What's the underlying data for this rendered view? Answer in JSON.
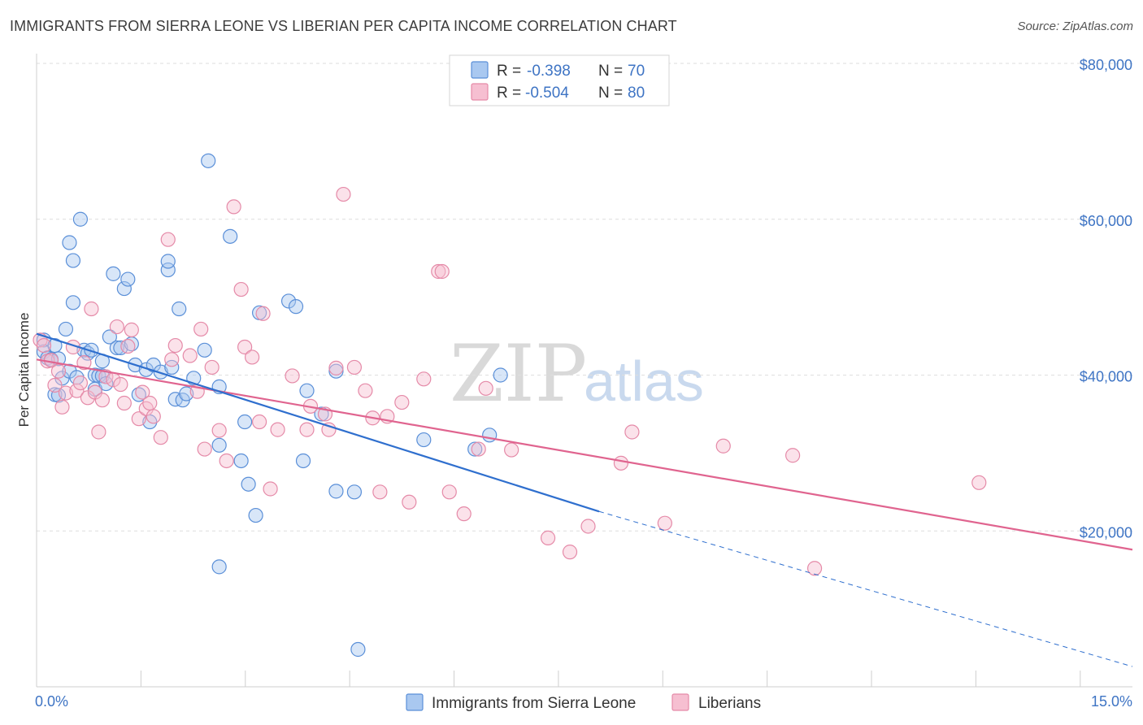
{
  "title": "IMMIGRANTS FROM SIERRA LEONE VS LIBERIAN PER CAPITA INCOME CORRELATION CHART",
  "source": "Source: ZipAtlas.com",
  "watermark": {
    "zip": "ZIP",
    "atlas": "atlas"
  },
  "colors": {
    "series1_fill": "#a9c8f0",
    "series1_stroke": "#5a8fd8",
    "series1_line": "#2f6fce",
    "series2_fill": "#f6bfd1",
    "series2_stroke": "#e58aa8",
    "series2_line": "#e0648f",
    "axis_text": "#3e74c4",
    "grid": "#dedede"
  },
  "stats": [
    {
      "r_label": "R = ",
      "r_value": "-0.398",
      "n_label": "N = ",
      "n_value": "70"
    },
    {
      "r_label": "R = ",
      "r_value": "-0.504",
      "n_label": "N = ",
      "n_value": "80"
    }
  ],
  "chart_data": {
    "type": "scatter",
    "title": "IMMIGRANTS FROM SIERRA LEONE VS LIBERIAN PER CAPITA INCOME CORRELATION CHART",
    "xlabel": "",
    "ylabel": "Per Capita Income",
    "xlim": [
      0,
      15
    ],
    "ylim": [
      0,
      80000
    ],
    "x_tick_labels": [
      "0.0%",
      "15.0%"
    ],
    "y_tick_labels": [
      "$20,000",
      "$40,000",
      "$60,000",
      "$80,000"
    ],
    "y_ticks": [
      20000,
      40000,
      60000,
      80000
    ],
    "grid": true,
    "legend_position": "bottom",
    "series": [
      {
        "name": "Immigrants from Sierra Leone",
        "trend": {
          "x0": 0,
          "y0": 45300,
          "x1": 7.7,
          "y1": 22500,
          "dashed_to_x": 15,
          "dashed_to_y": 2600
        },
        "points": [
          [
            0.1,
            44500
          ],
          [
            0.1,
            43000
          ],
          [
            0.15,
            42200
          ],
          [
            0.2,
            42000
          ],
          [
            0.25,
            43800
          ],
          [
            0.25,
            37500
          ],
          [
            0.3,
            37400
          ],
          [
            0.3,
            42100
          ],
          [
            0.35,
            39600
          ],
          [
            0.4,
            45900
          ],
          [
            0.45,
            40500
          ],
          [
            0.45,
            57000
          ],
          [
            0.5,
            49300
          ],
          [
            0.5,
            54700
          ],
          [
            0.55,
            39700
          ],
          [
            0.6,
            60000
          ],
          [
            0.65,
            43200
          ],
          [
            0.7,
            42800
          ],
          [
            0.75,
            43200
          ],
          [
            0.8,
            38200
          ],
          [
            0.8,
            40000
          ],
          [
            0.85,
            39900
          ],
          [
            0.9,
            39900
          ],
          [
            0.95,
            38900
          ],
          [
            0.9,
            41800
          ],
          [
            1.0,
            44900
          ],
          [
            1.05,
            53000
          ],
          [
            1.1,
            43500
          ],
          [
            1.15,
            43500
          ],
          [
            1.2,
            51100
          ],
          [
            1.25,
            52300
          ],
          [
            1.3,
            44000
          ],
          [
            1.35,
            41300
          ],
          [
            1.4,
            37500
          ],
          [
            1.5,
            40700
          ],
          [
            1.55,
            34000
          ],
          [
            1.6,
            41300
          ],
          [
            1.7,
            40400
          ],
          [
            1.8,
            53500
          ],
          [
            1.8,
            54600
          ],
          [
            1.85,
            41000
          ],
          [
            1.9,
            36900
          ],
          [
            1.95,
            48500
          ],
          [
            2.0,
            36800
          ],
          [
            2.05,
            37600
          ],
          [
            2.15,
            39600
          ],
          [
            2.3,
            43200
          ],
          [
            2.35,
            67500
          ],
          [
            2.5,
            15400
          ],
          [
            2.5,
            38500
          ],
          [
            2.5,
            31000
          ],
          [
            2.65,
            57800
          ],
          [
            2.8,
            29000
          ],
          [
            2.85,
            34000
          ],
          [
            2.9,
            26000
          ],
          [
            3.0,
            22000
          ],
          [
            3.05,
            48000
          ],
          [
            3.45,
            49500
          ],
          [
            3.55,
            48800
          ],
          [
            3.65,
            29000
          ],
          [
            3.7,
            38000
          ],
          [
            3.9,
            35000
          ],
          [
            4.1,
            25100
          ],
          [
            4.1,
            40500
          ],
          [
            4.35,
            25000
          ],
          [
            4.4,
            4800
          ],
          [
            5.3,
            31700
          ],
          [
            6.2,
            32300
          ],
          [
            6.35,
            40000
          ],
          [
            6.0,
            30500
          ]
        ]
      },
      {
        "name": "Liberians",
        "trend": {
          "x0": 0,
          "y0": 42000,
          "x1": 15,
          "y1": 17600
        },
        "points": [
          [
            0.05,
            44500
          ],
          [
            0.1,
            43800
          ],
          [
            0.15,
            41800
          ],
          [
            0.2,
            41900
          ],
          [
            0.25,
            38700
          ],
          [
            0.3,
            40500
          ],
          [
            0.35,
            35900
          ],
          [
            0.4,
            37700
          ],
          [
            0.5,
            43600
          ],
          [
            0.55,
            38000
          ],
          [
            0.6,
            39000
          ],
          [
            0.65,
            41600
          ],
          [
            0.7,
            37100
          ],
          [
            0.75,
            48500
          ],
          [
            0.8,
            37800
          ],
          [
            0.85,
            32700
          ],
          [
            0.9,
            36800
          ],
          [
            0.95,
            39800
          ],
          [
            1.05,
            39400
          ],
          [
            1.1,
            46200
          ],
          [
            1.15,
            38800
          ],
          [
            1.2,
            36400
          ],
          [
            1.25,
            43700
          ],
          [
            1.3,
            45800
          ],
          [
            1.4,
            34400
          ],
          [
            1.45,
            37800
          ],
          [
            1.5,
            35700
          ],
          [
            1.55,
            36400
          ],
          [
            1.6,
            34700
          ],
          [
            1.7,
            32000
          ],
          [
            1.8,
            57400
          ],
          [
            1.85,
            42000
          ],
          [
            1.9,
            43800
          ],
          [
            2.1,
            42500
          ],
          [
            2.2,
            37900
          ],
          [
            2.25,
            45900
          ],
          [
            2.3,
            30500
          ],
          [
            2.4,
            41000
          ],
          [
            2.5,
            32900
          ],
          [
            2.6,
            29000
          ],
          [
            2.7,
            61600
          ],
          [
            2.8,
            51000
          ],
          [
            2.85,
            43600
          ],
          [
            2.95,
            42300
          ],
          [
            3.05,
            34000
          ],
          [
            3.1,
            47900
          ],
          [
            3.2,
            25400
          ],
          [
            3.3,
            33000
          ],
          [
            3.5,
            39900
          ],
          [
            3.7,
            33000
          ],
          [
            3.75,
            36000
          ],
          [
            3.95,
            35000
          ],
          [
            4.0,
            33000
          ],
          [
            4.1,
            40900
          ],
          [
            4.2,
            63200
          ],
          [
            4.35,
            41000
          ],
          [
            4.5,
            38000
          ],
          [
            4.6,
            34500
          ],
          [
            4.7,
            25000
          ],
          [
            4.8,
            34700
          ],
          [
            5.0,
            36500
          ],
          [
            5.1,
            23700
          ],
          [
            5.3,
            39500
          ],
          [
            5.5,
            53300
          ],
          [
            5.55,
            53300
          ],
          [
            5.65,
            25000
          ],
          [
            5.85,
            22200
          ],
          [
            6.05,
            30500
          ],
          [
            6.15,
            38300
          ],
          [
            6.5,
            30400
          ],
          [
            7.0,
            19100
          ],
          [
            7.3,
            17300
          ],
          [
            7.55,
            20600
          ],
          [
            8.0,
            28700
          ],
          [
            8.15,
            32700
          ],
          [
            8.6,
            21000
          ],
          [
            9.4,
            30900
          ],
          [
            10.35,
            29700
          ],
          [
            12.9,
            26200
          ],
          [
            10.65,
            15200
          ]
        ]
      }
    ]
  }
}
